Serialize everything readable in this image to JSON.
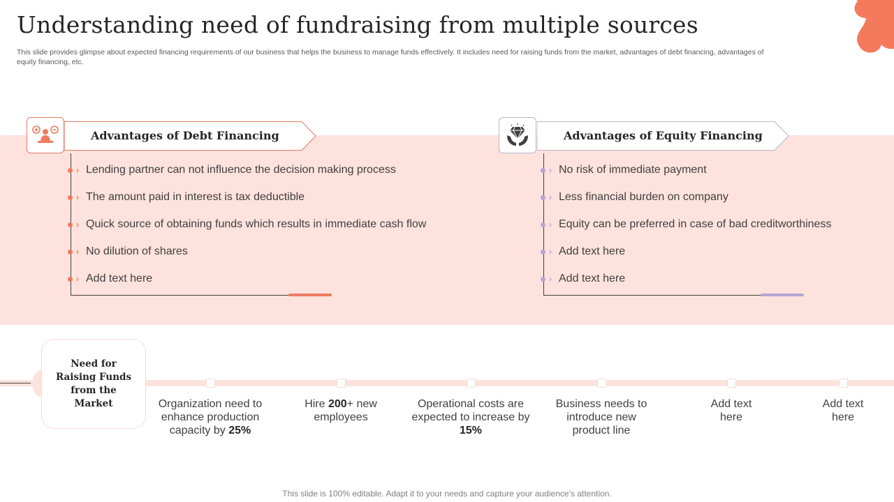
{
  "title": "Understanding need of fundraising from multiple sources",
  "subtitle": "This slide provides glimpse about expected financing requirements of our business that helps the business to manage funds effectively. It includes need for raising funds from the market, advantages of debt financing, advantages of equity financing, etc.",
  "colors": {
    "coral": "#ef7a5f",
    "band": "#fde2dd",
    "lavender": "#b6a6d6",
    "dark": "#404040"
  },
  "debt": {
    "icon": "people-plus-minus-icon",
    "heading": "Advantages of Debt Financing",
    "items": [
      "Lending partner can not influence the decision making process",
      "The amount paid in interest is tax deductible",
      "Quick source of obtaining funds which results in immediate cash flow",
      "No dilution of shares",
      "Add text here"
    ]
  },
  "equity": {
    "icon": "hands-diamond-icon",
    "heading": "Advantages of Equity Financing",
    "items": [
      "No risk of immediate payment",
      "Less financial burden on company",
      "Equity can be preferred in case of bad creditworthiness",
      "Add text here",
      "Add text here"
    ]
  },
  "need": {
    "title": "Need for Raising Funds from the Market",
    "items": [
      {
        "pre": "Organization need to enhance production capacity by ",
        "bold": "25%",
        "post": ""
      },
      {
        "pre": "Hire ",
        "bold": "200",
        "post": "+ new employees"
      },
      {
        "pre": "Operational costs are expected to increase by ",
        "bold": "15%",
        "post": ""
      },
      {
        "pre": "Business needs to introduce new product line",
        "bold": "",
        "post": ""
      },
      {
        "pre": "Add text here",
        "bold": "",
        "post": ""
      },
      {
        "pre": "Add text here",
        "bold": "",
        "post": ""
      }
    ]
  },
  "footer": "This slide is 100% editable. Adapt it to your needs and capture your audience’s attention."
}
